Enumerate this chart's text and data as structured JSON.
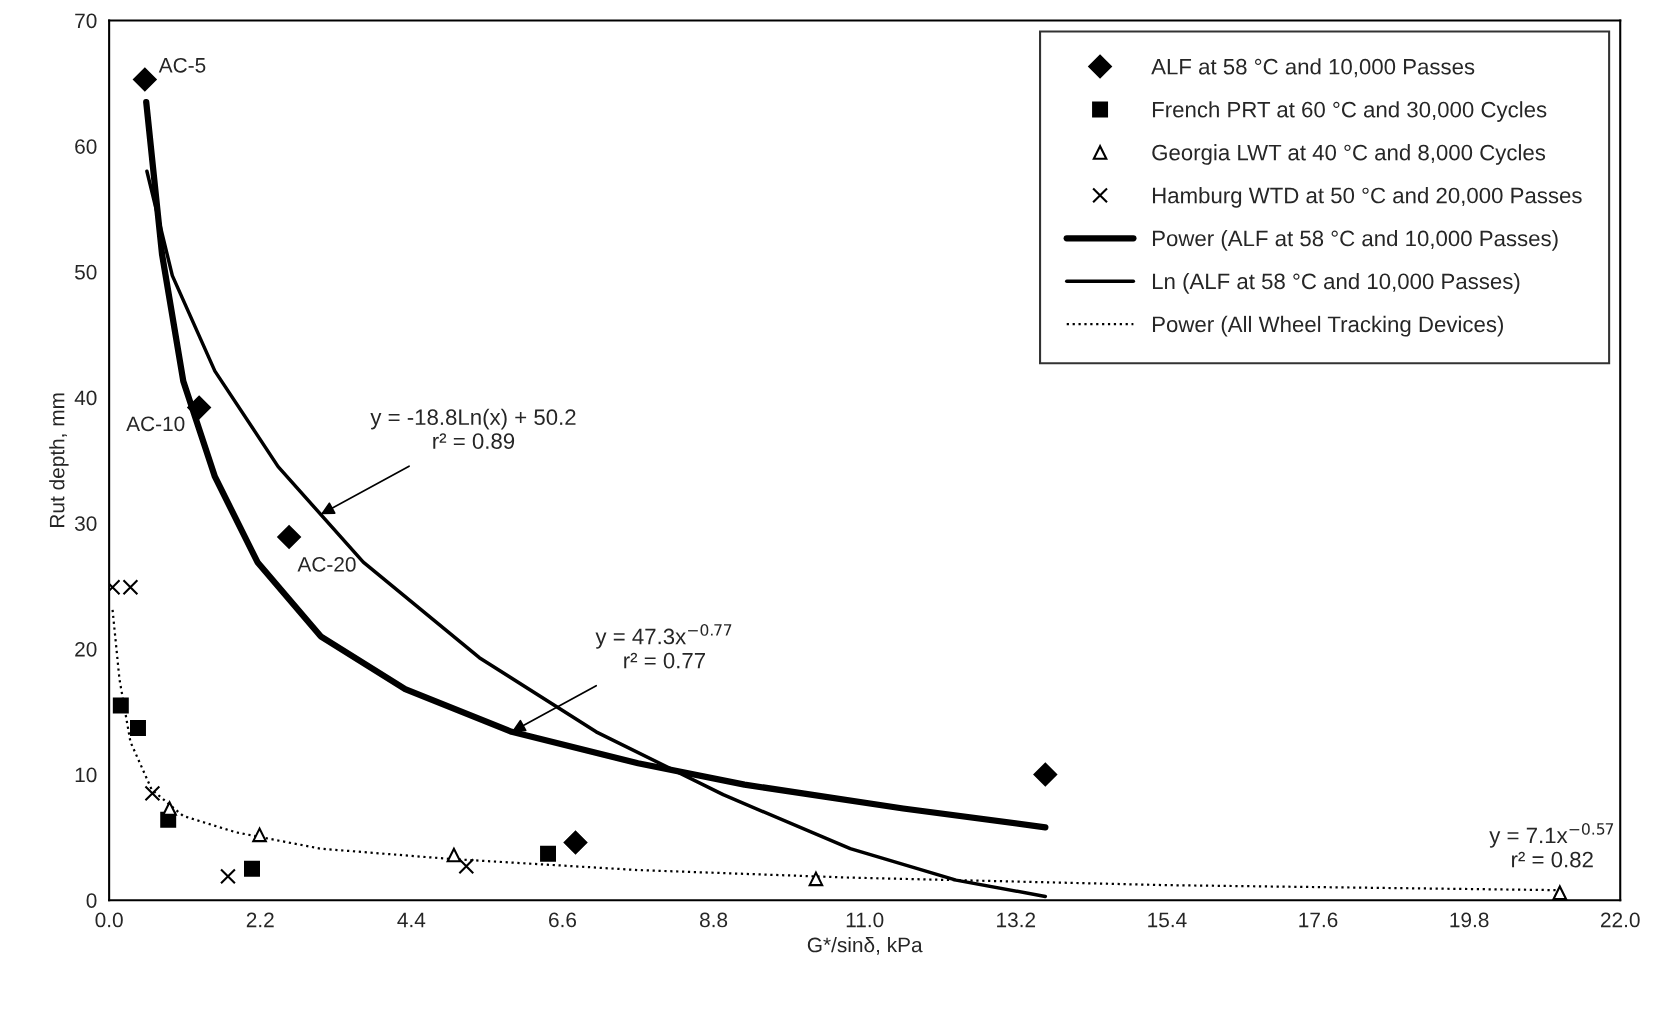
{
  "chart_data": {
    "type": "scatter",
    "xlabel": "G*/sinδ, kPa",
    "ylabel": "Rut depth, mm",
    "xlim": [
      0,
      22
    ],
    "xticks": [
      {
        "value": 0,
        "label": "0.0"
      },
      {
        "value": 2.2,
        "label": "2.2"
      },
      {
        "value": 4.4,
        "label": "4.4"
      },
      {
        "value": 6.6,
        "label": "6.6"
      },
      {
        "value": 8.8,
        "label": "8.8"
      },
      {
        "value": 11,
        "label": "11.0"
      },
      {
        "value": 13.2,
        "label": "13.2"
      },
      {
        "value": 15.4,
        "label": "15.4"
      },
      {
        "value": 17.6,
        "label": "17.6"
      },
      {
        "value": 19.8,
        "label": "19.8"
      },
      {
        "value": 22,
        "label": "22.0"
      }
    ],
    "ylim": [
      0,
      70
    ],
    "yticks": [
      0,
      10,
      20,
      30,
      40,
      50,
      60,
      70
    ],
    "grid": false,
    "legend": "top right",
    "series": [
      {
        "name": "ALF at 58 °C and 10,000 Passes",
        "marker": "diamond",
        "color": "#000000",
        "x": [
          0.52,
          1.31,
          2.62,
          6.79,
          13.63
        ],
        "values": [
          65.3,
          39.2,
          28.9,
          4.6,
          10.0
        ],
        "value_labels": [
          "AC-5",
          "AC-10",
          "AC-20",
          null,
          null
        ]
      },
      {
        "name": "French PRT at 60 °C and 30,000 Cycles",
        "marker": "square",
        "color": "#000000",
        "x": [
          0.17,
          0.42,
          0.86,
          2.08,
          6.39
        ],
        "values": [
          15.5,
          13.7,
          6.4,
          2.5,
          3.7
        ]
      },
      {
        "name": "Georgia LWT at 40 °C and 8,000 Cycles",
        "marker": "triangle",
        "color": "#000000",
        "x": [
          0.88,
          2.19,
          5.02,
          10.29,
          21.12
        ],
        "values": [
          7.3,
          5.2,
          3.6,
          1.7,
          0.6
        ]
      },
      {
        "name": "Hamburg WTD at 50 °C and 20,000 Passes",
        "marker": "cross",
        "color": "#000000",
        "x": [
          0.05,
          0.31,
          0.63,
          1.73,
          5.2
        ],
        "values": [
          24.9,
          24.9,
          8.5,
          1.9,
          2.7
        ]
      },
      {
        "name": "Power (ALF at 58 °C and 10,000 Passes)",
        "type": "line",
        "line_style": "solid",
        "color": "#000000",
        "x": [
          0.54,
          0.77,
          1.08,
          1.54,
          2.16,
          3.08,
          4.31,
          5.86,
          7.7,
          9.25,
          11.56,
          13.63
        ],
        "values": [
          63.5,
          51.4,
          41.3,
          33.7,
          26.9,
          21.0,
          16.8,
          13.4,
          10.9,
          9.2,
          7.3,
          5.8
        ]
      },
      {
        "name": "Ln (ALF at 58 °C and 10,000 Passes)",
        "type": "line",
        "line_style": "solid",
        "color": "#000000",
        "x": [
          0.55,
          0.92,
          1.54,
          2.46,
          3.7,
          5.39,
          7.09,
          8.94,
          10.79,
          12.33,
          13.63
        ],
        "values": [
          58.0,
          49.7,
          42.1,
          34.5,
          26.9,
          19.3,
          13.4,
          8.4,
          4.1,
          1.6,
          0.3
        ]
      },
      {
        "name": "Power (All Wheel Tracking Devices)",
        "type": "line",
        "line_style": "dotted",
        "color": "#000000",
        "x": [
          0.05,
          0.15,
          0.31,
          0.62,
          1.08,
          1.85,
          3.08,
          4.93,
          7.7,
          10.79,
          15.4,
          21.12
        ],
        "values": [
          23.1,
          17.6,
          12.6,
          8.8,
          6.7,
          5.4,
          4.1,
          3.3,
          2.4,
          1.8,
          1.2,
          0.8
        ]
      }
    ],
    "annotations": [
      {
        "text": "y = -18.8Ln(x) + 50.2\nr² = 0.89",
        "x": 3.08,
        "y": 30.7
      },
      {
        "text": "y = 47.3x$^{−0.77}$\nr² = 0.77",
        "x": 5.86,
        "y": 13.4
      },
      "y = 7.1x$^{−0.57}$\nr² = 0.82"
    ]
  }
}
